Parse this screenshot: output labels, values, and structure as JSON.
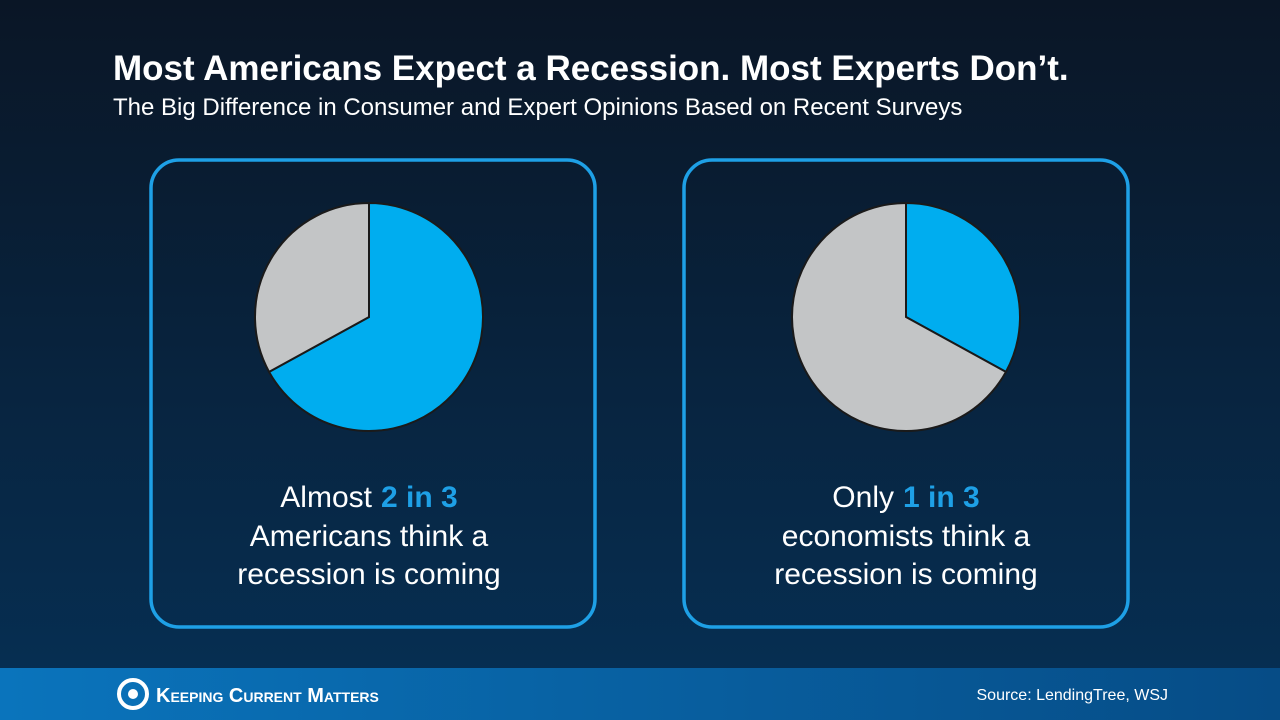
{
  "title": "Most Americans Expect a Recession. Most Experts Don’t.",
  "subtitle": "The Big Difference in Consumer and Expert Opinions Based on Recent Surveys",
  "chart_data": [
    {
      "type": "pie",
      "values": [
        67,
        33
      ],
      "colors": [
        "#00adef",
        "#c3c5c6"
      ],
      "caption": {
        "lead": "Almost",
        "highlight": "2 in 3",
        "lines": [
          "Americans think a",
          "recession is coming"
        ]
      }
    },
    {
      "type": "pie",
      "values": [
        33,
        67
      ],
      "colors": [
        "#00adef",
        "#c3c5c6"
      ],
      "caption": {
        "lead": "Only",
        "highlight": "1 in 3",
        "lines": [
          "economists think a",
          "recession is coming"
        ]
      }
    }
  ],
  "footer": {
    "logo": "Keeping Current Matters",
    "source": "Source: LendingTree, WSJ"
  }
}
